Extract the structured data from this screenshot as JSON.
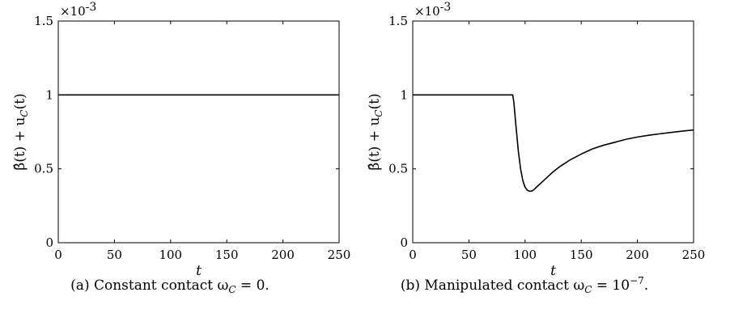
{
  "chart_data": [
    {
      "type": "line",
      "panel": "a",
      "caption": "(a) Constant contact ω",
      "caption_sub": "C",
      "caption_tail": " = 0.",
      "xlabel": "t",
      "ylabel": "β̂(t) + u",
      "ylabel_sub": "C",
      "ylabel_tail": "(t)",
      "exponent_prefix": "×10",
      "exponent_power": "-3",
      "xlim": [
        0,
        250
      ],
      "ylim": [
        0,
        1.5
      ],
      "xticks": [
        "0",
        "50",
        "100",
        "150",
        "200",
        "250"
      ],
      "yticks": [
        "0",
        "0.5",
        "1",
        "1.5"
      ],
      "series": [
        {
          "x": [
            0,
            250
          ],
          "y": [
            1.0,
            1.0
          ]
        }
      ]
    },
    {
      "type": "line",
      "panel": "b",
      "caption": "(b) Manipulated contact ω",
      "caption_sub": "C",
      "caption_tail": " = 10",
      "caption_sup": "−7",
      "caption_end": ".",
      "xlabel": "t",
      "ylabel": "β̂(t) + u",
      "ylabel_sub": "C",
      "ylabel_tail": "(t)",
      "exponent_prefix": "×10",
      "exponent_power": "-3",
      "xlim": [
        0,
        250
      ],
      "ylim": [
        0,
        1.5
      ],
      "xticks": [
        "0",
        "50",
        "100",
        "150",
        "200",
        "250"
      ],
      "yticks": [
        "0",
        "0.5",
        "1",
        "1.5"
      ],
      "series": [
        {
          "x": [
            0,
            89,
            90,
            92,
            94,
            96,
            98,
            100,
            102,
            104,
            106,
            108,
            110,
            115,
            120,
            125,
            130,
            140,
            150,
            160,
            170,
            180,
            190,
            200,
            210,
            220,
            230,
            240,
            250
          ],
          "y": [
            1.0,
            1.0,
            0.95,
            0.78,
            0.62,
            0.5,
            0.42,
            0.375,
            0.355,
            0.348,
            0.35,
            0.36,
            0.375,
            0.41,
            0.445,
            0.48,
            0.51,
            0.56,
            0.6,
            0.635,
            0.66,
            0.68,
            0.7,
            0.715,
            0.727,
            0.737,
            0.746,
            0.755,
            0.763
          ]
        }
      ]
    }
  ]
}
